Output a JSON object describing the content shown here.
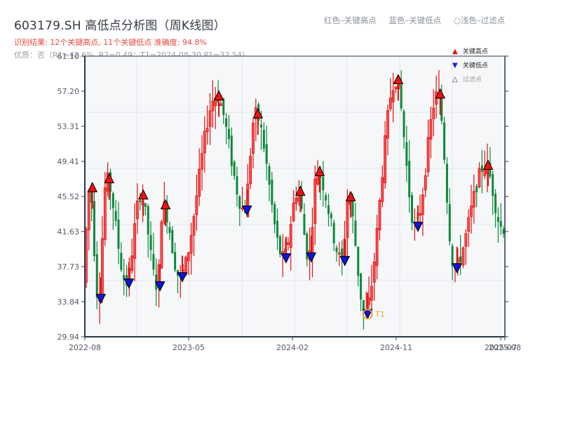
{
  "header": {
    "title": "603179.SH 高低点分析图（周K线图）",
    "result_line": "识别结果: 12个关键高点, 11个关键低点   准确度: 94.8%",
    "quality_line": "优质：否（R1=42.6%, R2=0.49；T1=2024-08-30 P1=32.54）"
  },
  "top_legend": {
    "red": "红色–关键高点",
    "blue": "蓝色–关键低点",
    "light": "○浅色–过滤点"
  },
  "legend": {
    "items": [
      {
        "symbol": "▲",
        "label": "关键高点",
        "color": "#ee1111"
      },
      {
        "symbol": "▼",
        "label": "关键低点",
        "color": "#1122ee"
      },
      {
        "symbol": "△",
        "label": "过滤点",
        "color": "#ffcccc"
      }
    ]
  },
  "colors": {
    "up": "#dd1111",
    "down": "#0a8a3a",
    "high_marker": "#ee1111",
    "low_marker": "#1111dd",
    "t1_ring": "#f0a030",
    "grid": "#e2e5ea",
    "plot_bg": "#f6f7f9",
    "axis": "#2c3a4b"
  },
  "chart_data": {
    "type": "candlestick",
    "title": "603179.SH 高低点分析图（周K线图）",
    "xlabel": "",
    "ylabel": "",
    "ylim": [
      29.94,
      61.1
    ],
    "yticks": [
      "29.94",
      "33.84",
      "37.73",
      "41.63",
      "45.52",
      "49.41",
      "53.31",
      "57.20",
      "61.10"
    ],
    "xticks": [
      "2022-08",
      "2023-05",
      "2024-02",
      "2024-11",
      "2025-07",
      "2025-08"
    ],
    "grid": true,
    "legend_position": "upper right",
    "key_highs": [
      {
        "x_frac": 0.018,
        "price": 46.5
      },
      {
        "x_frac": 0.058,
        "price": 47.5
      },
      {
        "x_frac": 0.139,
        "price": 45.7
      },
      {
        "x_frac": 0.192,
        "price": 44.6
      },
      {
        "x_frac": 0.319,
        "price": 56.7
      },
      {
        "x_frac": 0.412,
        "price": 54.7
      },
      {
        "x_frac": 0.513,
        "price": 46.1
      },
      {
        "x_frac": 0.559,
        "price": 48.3
      },
      {
        "x_frac": 0.633,
        "price": 45.5
      },
      {
        "x_frac": 0.746,
        "price": 58.5
      },
      {
        "x_frac": 0.846,
        "price": 56.9
      },
      {
        "x_frac": 0.96,
        "price": 49.0
      }
    ],
    "key_lows": [
      {
        "x_frac": 0.038,
        "price": 34.2
      },
      {
        "x_frac": 0.105,
        "price": 35.9
      },
      {
        "x_frac": 0.179,
        "price": 35.6
      },
      {
        "x_frac": 0.232,
        "price": 36.6
      },
      {
        "x_frac": 0.386,
        "price": 44.0
      },
      {
        "x_frac": 0.479,
        "price": 38.7
      },
      {
        "x_frac": 0.539,
        "price": 38.8
      },
      {
        "x_frac": 0.619,
        "price": 38.4
      },
      {
        "x_frac": 0.673,
        "price": 32.5
      },
      {
        "x_frac": 0.793,
        "price": 42.2
      },
      {
        "x_frac": 0.886,
        "price": 37.6
      }
    ],
    "annotation": {
      "label": "T1",
      "date": "2024-08-30",
      "price": 32.54,
      "x_frac": 0.673
    },
    "price_path": [
      [
        0.0,
        36.0
      ],
      [
        0.018,
        46.5
      ],
      [
        0.038,
        34.2
      ],
      [
        0.058,
        47.5
      ],
      [
        0.105,
        35.9
      ],
      [
        0.139,
        45.7
      ],
      [
        0.179,
        35.6
      ],
      [
        0.192,
        44.6
      ],
      [
        0.232,
        36.6
      ],
      [
        0.319,
        56.7
      ],
      [
        0.386,
        44.0
      ],
      [
        0.412,
        54.7
      ],
      [
        0.479,
        38.7
      ],
      [
        0.513,
        46.1
      ],
      [
        0.539,
        38.8
      ],
      [
        0.559,
        48.3
      ],
      [
        0.619,
        38.4
      ],
      [
        0.633,
        45.5
      ],
      [
        0.673,
        32.5
      ],
      [
        0.746,
        58.5
      ],
      [
        0.793,
        42.2
      ],
      [
        0.846,
        56.9
      ],
      [
        0.886,
        37.6
      ],
      [
        0.96,
        49.0
      ],
      [
        1.0,
        42.0
      ]
    ],
    "n_weeks": 156
  }
}
